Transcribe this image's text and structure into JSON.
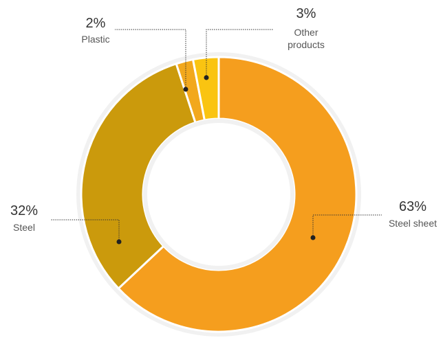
{
  "chart_data": {
    "type": "pie",
    "title": "",
    "slices": [
      {
        "label": "Steel sheet",
        "value": 63,
        "value_label": "63%",
        "color": "#F59E1E"
      },
      {
        "label": "Steel",
        "value": 32,
        "value_label": "32%",
        "color": "#CB9A0C"
      },
      {
        "label": "Plastic",
        "value": 2,
        "value_label": "2%",
        "color": "#F2A81D"
      },
      {
        "label": "Other products",
        "label_lines": [
          "Other",
          "products"
        ],
        "value": 3,
        "value_label": "3%",
        "color": "#FAC411"
      }
    ],
    "start": "top",
    "direction": "clockwise",
    "donut": true,
    "legend": "none"
  }
}
